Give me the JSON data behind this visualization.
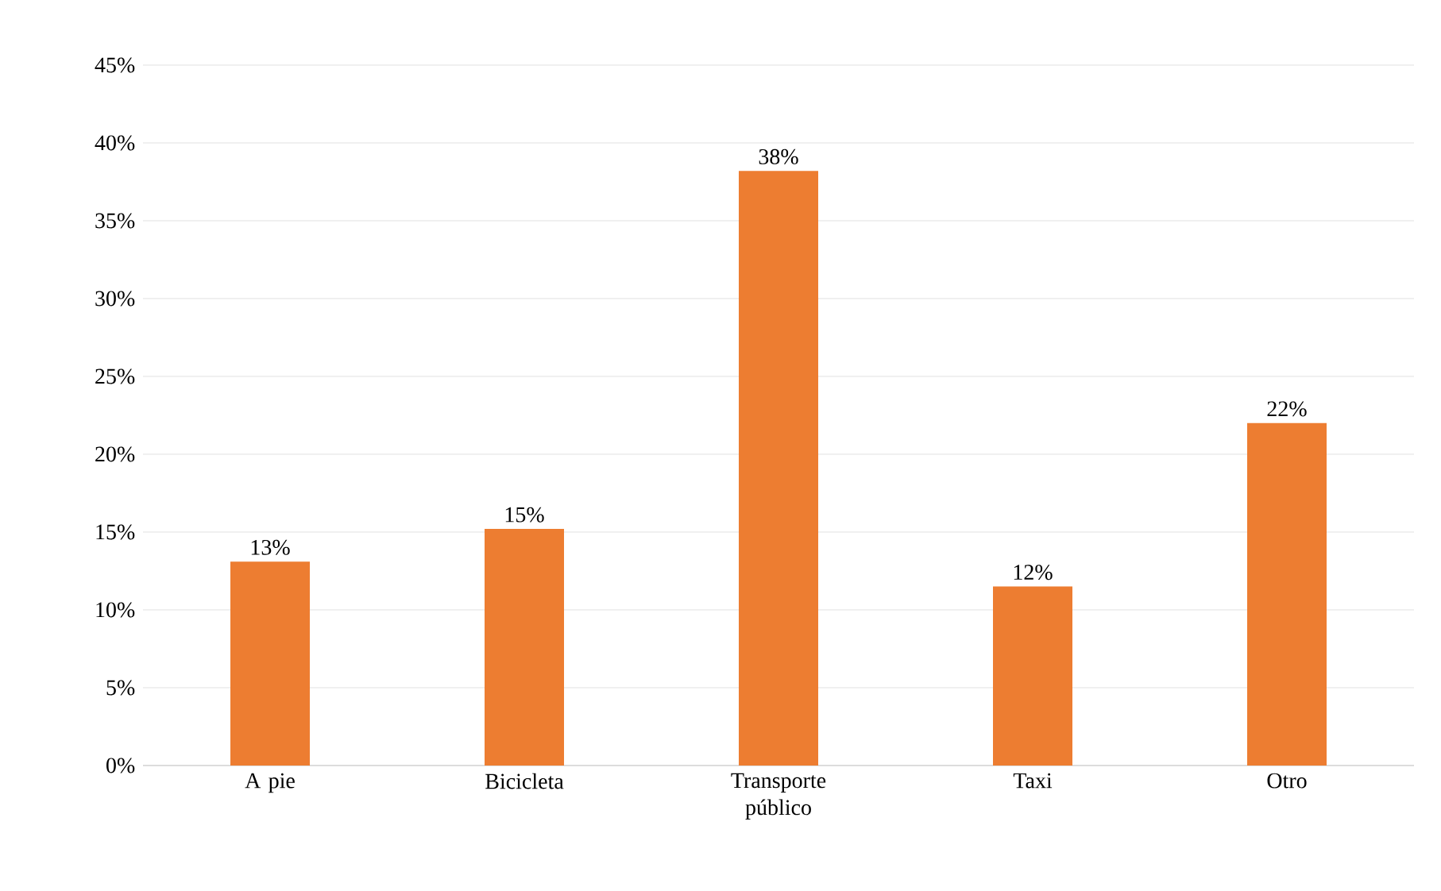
{
  "chart_data": {
    "type": "bar",
    "categories": [
      "A pie",
      "Bicicleta",
      "Transporte público",
      "Taxi",
      "Otro"
    ],
    "values": [
      13.1,
      15.2,
      38.2,
      11.5,
      22.0
    ],
    "value_labels": [
      "13%",
      "15%",
      "38%",
      "12%",
      "22%"
    ],
    "color": "#ed7d31",
    "ylim": [
      0,
      45
    ],
    "yticks": [
      {
        "value": 0,
        "label": "0%"
      },
      {
        "value": 5,
        "label": "5%"
      },
      {
        "value": 10,
        "label": "10%"
      },
      {
        "value": 15,
        "label": "15%"
      },
      {
        "value": 20,
        "label": "20%"
      },
      {
        "value": 25,
        "label": "25%"
      },
      {
        "value": 30,
        "label": "30%"
      },
      {
        "value": 35,
        "label": "35%"
      },
      {
        "value": 40,
        "label": "40%"
      },
      {
        "value": 45,
        "label": "45%"
      }
    ],
    "grid": "y"
  }
}
